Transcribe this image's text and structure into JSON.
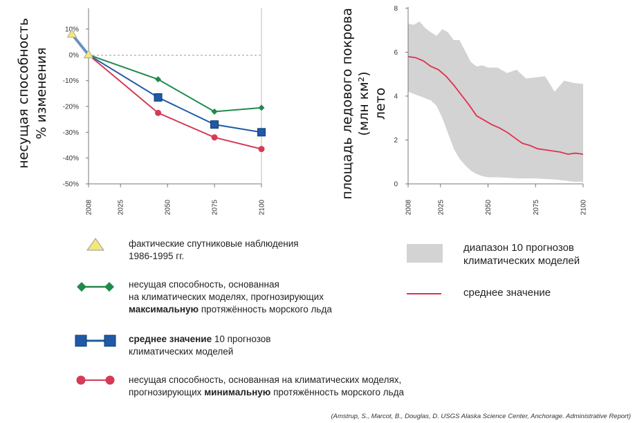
{
  "chart_data": [
    {
      "type": "line",
      "ylabel_lines": [
        "несущая способность",
        "% изменения"
      ],
      "categories": [
        "2008",
        "2025",
        "2050",
        "2075",
        "2100"
      ],
      "yticks": [
        "10%",
        "0%",
        "-10%",
        "-20%",
        "-30%",
        "-40%",
        "-50%"
      ],
      "ylim": [
        -50,
        10
      ],
      "observed": {
        "x": [
          1990,
          2008
        ],
        "y": [
          8,
          0
        ],
        "color": "#f2e87a"
      },
      "series": [
        {
          "key": "max",
          "x": [
            2008,
            2045,
            2075,
            2100
          ],
          "y": [
            0,
            -9.5,
            -22,
            -20.5
          ],
          "color": "#1f8a4c",
          "marker": "diamond"
        },
        {
          "key": "mean",
          "x": [
            2008,
            2045,
            2075,
            2100
          ],
          "y": [
            0,
            -16.5,
            -27,
            -30
          ],
          "color": "#1f5aa6",
          "marker": "square"
        },
        {
          "key": "min",
          "x": [
            2008,
            2045,
            2075,
            2100
          ],
          "y": [
            0,
            -22.5,
            -32,
            -36.5
          ],
          "color": "#d63a55",
          "marker": "circle"
        }
      ],
      "reference_line": 0,
      "grid": false
    },
    {
      "type": "area",
      "ylabel_lines": [
        "площадь ледового покрова",
        "(млн км²)",
        "лето"
      ],
      "categories": [
        "2008",
        "2025",
        "2050",
        "2075",
        "2100"
      ],
      "yticks": [
        "8",
        "6",
        "4",
        "2",
        "0"
      ],
      "ylim": [
        0,
        8
      ],
      "xlim": [
        2008,
        2100
      ],
      "range_color": "#d3d3d3",
      "mean_color": "#e0304c",
      "range_x": [
        2008,
        2011,
        2014,
        2017,
        2020,
        2023,
        2026,
        2029,
        2032,
        2035,
        2038,
        2041,
        2044,
        2047,
        2050,
        2055,
        2060,
        2065,
        2070,
        2075,
        2080,
        2085,
        2090,
        2095,
        2100
      ],
      "range_upper": [
        7.3,
        7.25,
        7.4,
        7.1,
        6.9,
        6.75,
        7.05,
        6.9,
        6.55,
        6.55,
        6.05,
        5.55,
        5.35,
        5.4,
        5.3,
        5.3,
        5.05,
        5.2,
        4.8,
        4.85,
        4.9,
        4.2,
        4.7,
        4.6,
        4.55
      ],
      "range_lower": [
        4.2,
        4.1,
        4.0,
        3.9,
        3.8,
        3.55,
        3.0,
        2.3,
        1.6,
        1.15,
        0.85,
        0.6,
        0.45,
        0.35,
        0.3,
        0.3,
        0.28,
        0.25,
        0.25,
        0.25,
        0.22,
        0.2,
        0.15,
        0.1,
        0.1
      ],
      "mean_x": [
        2008,
        2012,
        2016,
        2020,
        2024,
        2028,
        2032,
        2036,
        2040,
        2044,
        2048,
        2052,
        2056,
        2060,
        2064,
        2068,
        2072,
        2076,
        2080,
        2084,
        2088,
        2092,
        2096,
        2100
      ],
      "mean_y": [
        5.8,
        5.75,
        5.6,
        5.35,
        5.2,
        4.9,
        4.5,
        4.05,
        3.6,
        3.1,
        2.9,
        2.7,
        2.55,
        2.35,
        2.1,
        1.85,
        1.75,
        1.6,
        1.55,
        1.5,
        1.45,
        1.35,
        1.4,
        1.35
      ]
    }
  ],
  "legend_left": [
    {
      "key": "observed",
      "lines": [
        [
          {
            "t": "фактические спутниковые наблюдения",
            "b": false
          }
        ],
        [
          {
            "t": "1986-1995 гг.",
            "b": false
          }
        ]
      ]
    },
    {
      "key": "max",
      "lines": [
        [
          {
            "t": "несущая способность, основанная",
            "b": false
          }
        ],
        [
          {
            "t": "на климатических моделях, прогнозирующих",
            "b": false
          }
        ],
        [
          {
            "t": "максимальную",
            "b": true
          },
          {
            "t": " протяжённость морского льда",
            "b": false
          }
        ]
      ]
    },
    {
      "key": "mean",
      "lines": [
        [
          {
            "t": "среднее значение",
            "b": true
          },
          {
            "t": " 10 прогнозов",
            "b": false
          }
        ],
        [
          {
            "t": "климатических моделей",
            "b": false
          }
        ]
      ]
    },
    {
      "key": "min",
      "lines": [
        [
          {
            "t": "несущая способность, основанная на климатических моделях,",
            "b": false
          }
        ],
        [
          {
            "t": "прогнозирующих ",
            "b": false
          },
          {
            "t": "минимальную",
            "b": true
          },
          {
            "t": " протяжённость морского льда",
            "b": false
          }
        ]
      ]
    }
  ],
  "legend_right": [
    {
      "key": "range",
      "lines": [
        "диапазон 10 прогнозов",
        "климатических моделей"
      ]
    },
    {
      "key": "mean_line",
      "lines": [
        "среднее значение"
      ]
    }
  ],
  "source": "(Amstrup, S., Marcot, B., Douglas, D. USGS Alaska Science Center, Anchorage. Administrative Report)"
}
